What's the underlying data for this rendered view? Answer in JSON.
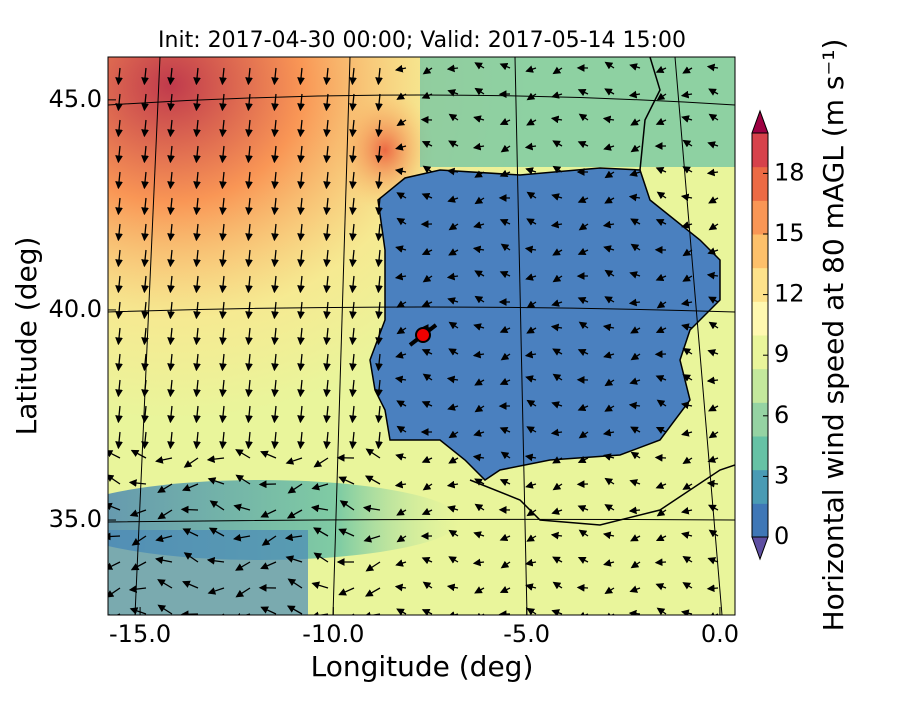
{
  "chart_data": {
    "type": "map",
    "title": "Init: 2017-04-30 00:00; Valid: 2017-05-14 15:00",
    "x_label": "Longitude (deg)",
    "y_label": "Latitude (deg)",
    "xlim": [
      -15.83,
      0.39
    ],
    "ylim": [
      32.74,
      46.02
    ],
    "xticks": [
      {
        "value": -15,
        "label": "-15.0"
      },
      {
        "value": -10,
        "label": "-10.0"
      },
      {
        "value": -5,
        "label": "-5.0"
      },
      {
        "value": 0,
        "label": "0.0"
      }
    ],
    "yticks": [
      {
        "value": 35,
        "label": "35.0"
      },
      {
        "value": 40,
        "label": "40.0"
      },
      {
        "value": 45,
        "label": "45.0"
      }
    ],
    "colorbar": {
      "label": "Horizontal wind speed at 80 mAGL (m s⁻¹)",
      "lim": [
        0,
        20
      ],
      "ticks": [
        0,
        3,
        6,
        9,
        12,
        15,
        18
      ],
      "colors": [
        "#5e4fa2",
        "#3f77b6",
        "#4a9bb4",
        "#66c2a5",
        "#95d3a3",
        "#c4e89d",
        "#e9f59b",
        "#fff8b0",
        "#fee28b",
        "#fdc06b",
        "#f99655",
        "#ec6a44",
        "#d7424b",
        "#9e0142"
      ]
    }
  }
}
